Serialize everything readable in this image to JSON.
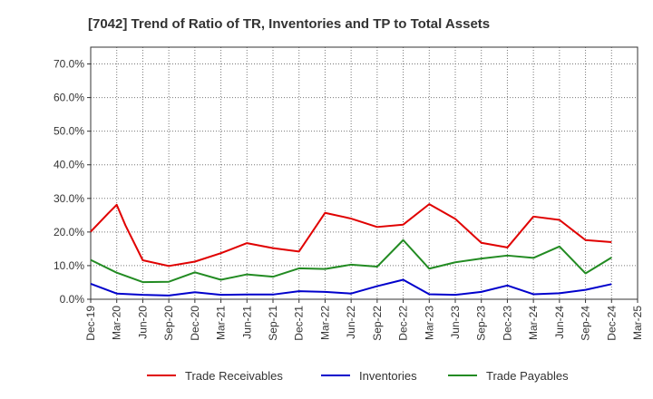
{
  "chart_data": {
    "type": "line",
    "title": "[7042]  Trend of Ratio of TR, Inventories and TP to Total Assets",
    "xlabel": "",
    "ylabel": "",
    "ylim": [
      0,
      0.75
    ],
    "y_ticks": [
      0.0,
      0.1,
      0.2,
      0.3,
      0.4,
      0.5,
      0.6,
      0.7
    ],
    "y_tick_labels": [
      "0.0%",
      "10.0%",
      "20.0%",
      "30.0%",
      "40.0%",
      "50.0%",
      "60.0%",
      "70.0%"
    ],
    "x_tick_labels": [
      "Dec-19",
      "Mar-20",
      "Jun-20",
      "Sep-20",
      "Dec-20",
      "Mar-21",
      "Jun-21",
      "Sep-21",
      "Dec-21",
      "Mar-22",
      "Jun-22",
      "Sep-22",
      "Dec-22",
      "Mar-23",
      "Jun-23",
      "Sep-23",
      "Dec-23",
      "Mar-24",
      "Jun-24",
      "Sep-24",
      "Dec-24",
      "Mar-25"
    ],
    "grid": true,
    "legend_position": "bottom",
    "series": [
      {
        "name": "Trade Receivables",
        "color": "#e00000",
        "points": [
          [
            "Dec-19",
            0.201
          ],
          [
            "Feb-20",
            0.255
          ],
          [
            "Mar-20",
            0.281
          ],
          [
            "Apr-20",
            0.22
          ],
          [
            "Jun-20",
            0.116
          ],
          [
            "Sep-20",
            0.099
          ],
          [
            "Dec-20",
            0.112
          ],
          [
            "Mar-21",
            0.137
          ],
          [
            "Jun-21",
            0.167
          ],
          [
            "Sep-21",
            0.152
          ],
          [
            "Dec-21",
            0.142
          ],
          [
            "Mar-22",
            0.257
          ],
          [
            "Jun-22",
            0.24
          ],
          [
            "Sep-22",
            0.215
          ],
          [
            "Dec-22",
            0.222
          ],
          [
            "Mar-23",
            0.283
          ],
          [
            "Jun-23",
            0.239
          ],
          [
            "Sep-23",
            0.168
          ],
          [
            "Dec-23",
            0.154
          ],
          [
            "Mar-24",
            0.246
          ],
          [
            "Jun-24",
            0.236
          ],
          [
            "Sep-24",
            0.176
          ],
          [
            "Dec-24",
            0.17
          ]
        ]
      },
      {
        "name": "Inventories",
        "color": "#0000cc",
        "points": [
          [
            "Dec-19",
            0.046
          ],
          [
            "Mar-20",
            0.017
          ],
          [
            "Jun-20",
            0.013
          ],
          [
            "Sep-20",
            0.011
          ],
          [
            "Dec-20",
            0.021
          ],
          [
            "Mar-21",
            0.013
          ],
          [
            "Jun-21",
            0.014
          ],
          [
            "Sep-21",
            0.014
          ],
          [
            "Dec-21",
            0.024
          ],
          [
            "Mar-22",
            0.022
          ],
          [
            "Jun-22",
            0.017
          ],
          [
            "Sep-22",
            0.039
          ],
          [
            "Dec-22",
            0.058
          ],
          [
            "Mar-23",
            0.015
          ],
          [
            "Jun-23",
            0.013
          ],
          [
            "Sep-23",
            0.022
          ],
          [
            "Dec-23",
            0.041
          ],
          [
            "Mar-24",
            0.015
          ],
          [
            "Jun-24",
            0.018
          ],
          [
            "Sep-24",
            0.028
          ],
          [
            "Dec-24",
            0.045
          ]
        ]
      },
      {
        "name": "Trade Payables",
        "color": "#228b22",
        "points": [
          [
            "Dec-19",
            0.117
          ],
          [
            "Mar-20",
            0.079
          ],
          [
            "Jun-20",
            0.051
          ],
          [
            "Sep-20",
            0.052
          ],
          [
            "Dec-20",
            0.08
          ],
          [
            "Mar-21",
            0.058
          ],
          [
            "Jun-21",
            0.074
          ],
          [
            "Sep-21",
            0.067
          ],
          [
            "Dec-21",
            0.092
          ],
          [
            "Mar-22",
            0.09
          ],
          [
            "Jun-22",
            0.103
          ],
          [
            "Sep-22",
            0.097
          ],
          [
            "Dec-22",
            0.176
          ],
          [
            "Mar-23",
            0.091
          ],
          [
            "Jun-23",
            0.11
          ],
          [
            "Sep-23",
            0.121
          ],
          [
            "Dec-23",
            0.13
          ],
          [
            "Mar-24",
            0.123
          ],
          [
            "Jun-24",
            0.157
          ],
          [
            "Sep-24",
            0.077
          ],
          [
            "Dec-24",
            0.124
          ]
        ]
      }
    ]
  }
}
